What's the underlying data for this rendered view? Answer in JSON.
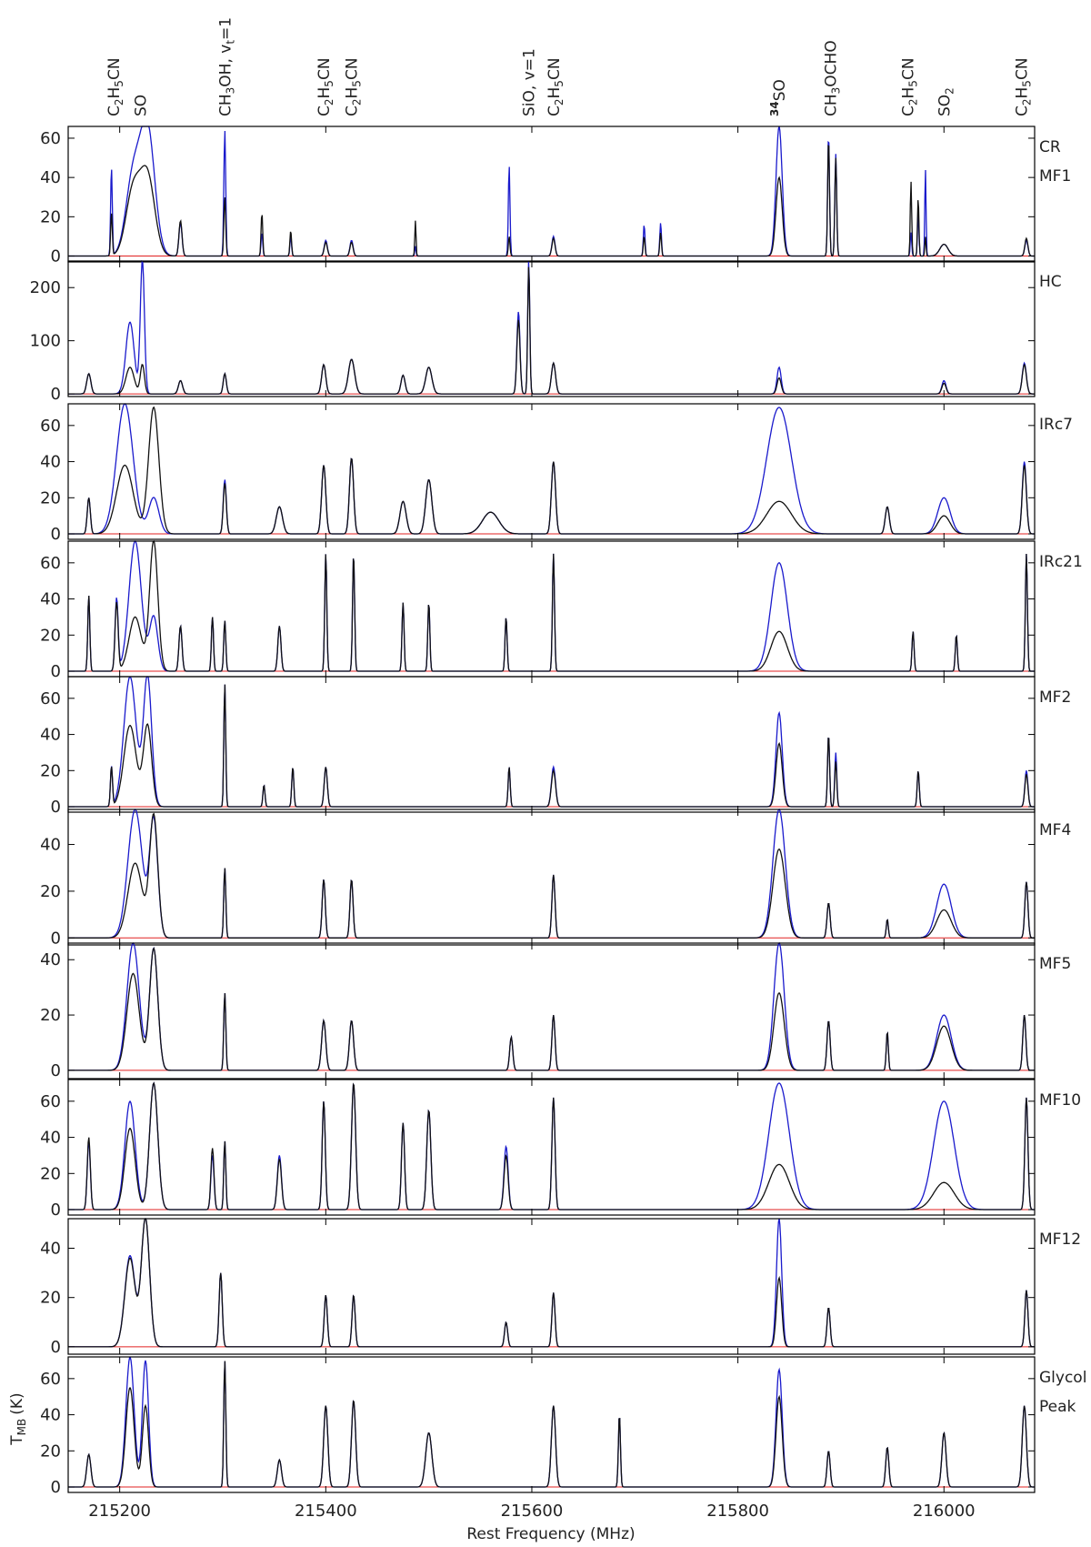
{
  "chart_data": {
    "type": "line",
    "xlabel": "Rest Frequency (MHz)",
    "ylabel_main": "T",
    "ylabel_sub": "MB",
    "ylabel_unit": "(K)",
    "x_range": [
      215150,
      216088
    ],
    "x_ticks": [
      215200,
      215400,
      215600,
      215800,
      216000
    ],
    "x_tick_labels": [
      "215200",
      "215400",
      "215600",
      "215800",
      "216000"
    ],
    "line_ids": [
      {
        "freq": 215194,
        "text": "C2H5CN"
      },
      {
        "freq": 215220,
        "text": "SO"
      },
      {
        "freq": 215302,
        "text": "CH3OH, vt=1"
      },
      {
        "freq": 215398,
        "text": "C2H5CN"
      },
      {
        "freq": 215425,
        "text": "C2H5CN"
      },
      {
        "freq": 215597,
        "text": "SiO, v=1"
      },
      {
        "freq": 215621,
        "text": "C2H5CN"
      },
      {
        "freq": 215840,
        "text": "34SO"
      },
      {
        "freq": 215890,
        "text": "CH3OCHO"
      },
      {
        "freq": 215965,
        "text": "C2H5CN"
      },
      {
        "freq": 216000,
        "text": "SO2"
      },
      {
        "freq": 216075,
        "text": "C2H5CN"
      }
    ],
    "panels": [
      {
        "labels": [
          "CR",
          "MF1"
        ],
        "ylim": [
          -3,
          66
        ],
        "yticks": [
          0,
          20,
          40,
          60
        ],
        "peaks": [
          {
            "x": 215192,
            "b": 45,
            "k": 22,
            "w": 0.8
          },
          {
            "x": 215213,
            "b": 40,
            "k": 33,
            "w": 7
          },
          {
            "x": 215227,
            "b": 64,
            "k": 40,
            "w": 7
          },
          {
            "x": 215259,
            "b": 17,
            "k": 18,
            "w": 1.5
          },
          {
            "x": 215302,
            "b": 64,
            "k": 30,
            "w": 0.9
          },
          {
            "x": 215338,
            "b": 12,
            "k": 22,
            "w": 0.8
          },
          {
            "x": 215366,
            "b": 10,
            "k": 13,
            "w": 0.8
          },
          {
            "x": 215400,
            "b": 8,
            "k": 7,
            "w": 1.5
          },
          {
            "x": 215425,
            "b": 8,
            "k": 7,
            "w": 1.5
          },
          {
            "x": 215487,
            "b": 5,
            "k": 18,
            "w": 0.6
          },
          {
            "x": 215578,
            "b": 46,
            "k": 10,
            "w": 0.8
          },
          {
            "x": 215621,
            "b": 10,
            "k": 9,
            "w": 1.5
          },
          {
            "x": 215709,
            "b": 16,
            "k": 10,
            "w": 0.8
          },
          {
            "x": 215725,
            "b": 17,
            "k": 12,
            "w": 0.8
          },
          {
            "x": 215840,
            "b": 66,
            "k": 40,
            "w": 3
          },
          {
            "x": 215888,
            "b": 62,
            "k": 60,
            "w": 0.9
          },
          {
            "x": 215895,
            "b": 52,
            "k": 50,
            "w": 0.9
          },
          {
            "x": 215968,
            "b": 12,
            "k": 38,
            "w": 0.7
          },
          {
            "x": 215975,
            "b": 22,
            "k": 30,
            "w": 0.7
          },
          {
            "x": 215982,
            "b": 45,
            "k": 10,
            "w": 0.6
          },
          {
            "x": 216000,
            "b": 6,
            "k": 6,
            "w": 4
          },
          {
            "x": 216080,
            "b": 8,
            "k": 9,
            "w": 1.5
          }
        ]
      },
      {
        "labels": [
          "HC"
        ],
        "ylim": [
          -5,
          250
        ],
        "yticks": [
          0,
          100,
          200
        ],
        "peaks": [
          {
            "x": 215170,
            "b": 38,
            "k": 38,
            "w": 2
          },
          {
            "x": 215210,
            "b": 135,
            "k": 50,
            "w": 4
          },
          {
            "x": 215222,
            "b": 250,
            "k": 55,
            "w": 2
          },
          {
            "x": 215259,
            "b": 25,
            "k": 25,
            "w": 2
          },
          {
            "x": 215302,
            "b": 38,
            "k": 38,
            "w": 1.5
          },
          {
            "x": 215398,
            "b": 55,
            "k": 55,
            "w": 2
          },
          {
            "x": 215425,
            "b": 65,
            "k": 65,
            "w": 3
          },
          {
            "x": 215475,
            "b": 35,
            "k": 35,
            "w": 2
          },
          {
            "x": 215500,
            "b": 50,
            "k": 50,
            "w": 3
          },
          {
            "x": 215587,
            "b": 155,
            "k": 140,
            "w": 1.5
          },
          {
            "x": 215597,
            "b": 250,
            "k": 240,
            "w": 1
          },
          {
            "x": 215621,
            "b": 58,
            "k": 58,
            "w": 2
          },
          {
            "x": 215840,
            "b": 50,
            "k": 30,
            "w": 2
          },
          {
            "x": 216000,
            "b": 25,
            "k": 20,
            "w": 2
          },
          {
            "x": 216078,
            "b": 58,
            "k": 55,
            "w": 2
          }
        ]
      },
      {
        "labels": [
          "IRc7"
        ],
        "ylim": [
          -3,
          72
        ],
        "yticks": [
          0,
          20,
          40,
          60
        ],
        "peaks": [
          {
            "x": 215170,
            "b": 20,
            "k": 20,
            "w": 1.5
          },
          {
            "x": 215205,
            "b": 72,
            "k": 38,
            "w": 8
          },
          {
            "x": 215233,
            "b": 20,
            "k": 70,
            "w": 5
          },
          {
            "x": 215302,
            "b": 30,
            "k": 28,
            "w": 1.5
          },
          {
            "x": 215355,
            "b": 15,
            "k": 15,
            "w": 3
          },
          {
            "x": 215398,
            "b": 38,
            "k": 38,
            "w": 2
          },
          {
            "x": 215425,
            "b": 42,
            "k": 42,
            "w": 2
          },
          {
            "x": 215475,
            "b": 18,
            "k": 18,
            "w": 3
          },
          {
            "x": 215500,
            "b": 30,
            "k": 30,
            "w": 3
          },
          {
            "x": 215560,
            "b": 12,
            "k": 12,
            "w": 8
          },
          {
            "x": 215621,
            "b": 40,
            "k": 40,
            "w": 2
          },
          {
            "x": 215840,
            "b": 70,
            "k": 18,
            "w": 12
          },
          {
            "x": 215945,
            "b": 15,
            "k": 15,
            "w": 2
          },
          {
            "x": 216000,
            "b": 20,
            "k": 10,
            "w": 6
          },
          {
            "x": 216078,
            "b": 40,
            "k": 38,
            "w": 2
          }
        ]
      },
      {
        "labels": [
          "IRc21"
        ],
        "ylim": [
          -3,
          72
        ],
        "yticks": [
          0,
          20,
          40,
          60
        ],
        "peaks": [
          {
            "x": 215170,
            "b": 42,
            "k": 42,
            "w": 1
          },
          {
            "x": 215197,
            "b": 40,
            "k": 38,
            "w": 1.5
          },
          {
            "x": 215215,
            "b": 72,
            "k": 30,
            "w": 6
          },
          {
            "x": 215233,
            "b": 30,
            "k": 72,
            "w": 4
          },
          {
            "x": 215259,
            "b": 25,
            "k": 25,
            "w": 1.5
          },
          {
            "x": 215290,
            "b": 30,
            "k": 30,
            "w": 1
          },
          {
            "x": 215302,
            "b": 28,
            "k": 28,
            "w": 1
          },
          {
            "x": 215355,
            "b": 25,
            "k": 25,
            "w": 1.5
          },
          {
            "x": 215400,
            "b": 65,
            "k": 65,
            "w": 1
          },
          {
            "x": 215427,
            "b": 65,
            "k": 65,
            "w": 1
          },
          {
            "x": 215475,
            "b": 38,
            "k": 38,
            "w": 1
          },
          {
            "x": 215500,
            "b": 38,
            "k": 38,
            "w": 1
          },
          {
            "x": 215575,
            "b": 30,
            "k": 30,
            "w": 1
          },
          {
            "x": 215621,
            "b": 65,
            "k": 65,
            "w": 1
          },
          {
            "x": 215840,
            "b": 60,
            "k": 22,
            "w": 8
          },
          {
            "x": 215970,
            "b": 22,
            "k": 22,
            "w": 1
          },
          {
            "x": 216012,
            "b": 20,
            "k": 20,
            "w": 1
          },
          {
            "x": 216080,
            "b": 65,
            "k": 65,
            "w": 1
          }
        ]
      },
      {
        "labels": [
          "MF2"
        ],
        "ylim": [
          -3,
          72
        ],
        "yticks": [
          0,
          20,
          40,
          60
        ],
        "peaks": [
          {
            "x": 215192,
            "b": 22,
            "k": 22,
            "w": 1
          },
          {
            "x": 215210,
            "b": 72,
            "k": 45,
            "w": 6
          },
          {
            "x": 215227,
            "b": 72,
            "k": 45,
            "w": 4
          },
          {
            "x": 215302,
            "b": 68,
            "k": 68,
            "w": 0.9
          },
          {
            "x": 215340,
            "b": 12,
            "k": 12,
            "w": 1
          },
          {
            "x": 215368,
            "b": 22,
            "k": 22,
            "w": 1
          },
          {
            "x": 215400,
            "b": 22,
            "k": 22,
            "w": 1.5
          },
          {
            "x": 215578,
            "b": 22,
            "k": 22,
            "w": 1
          },
          {
            "x": 215621,
            "b": 22,
            "k": 20,
            "w": 2
          },
          {
            "x": 215840,
            "b": 52,
            "k": 35,
            "w": 3
          },
          {
            "x": 215888,
            "b": 40,
            "k": 40,
            "w": 1
          },
          {
            "x": 215895,
            "b": 30,
            "k": 25,
            "w": 1
          },
          {
            "x": 215975,
            "b": 20,
            "k": 20,
            "w": 1
          },
          {
            "x": 216080,
            "b": 20,
            "k": 18,
            "w": 1.5
          }
        ]
      },
      {
        "labels": [
          "MF4"
        ],
        "ylim": [
          -3,
          55
        ],
        "yticks": [
          0,
          20,
          40
        ],
        "peaks": [
          {
            "x": 215215,
            "b": 55,
            "k": 32,
            "w": 7
          },
          {
            "x": 215233,
            "b": 50,
            "k": 52,
            "w": 4
          },
          {
            "x": 215302,
            "b": 30,
            "k": 30,
            "w": 1
          },
          {
            "x": 215398,
            "b": 25,
            "k": 25,
            "w": 1.5
          },
          {
            "x": 215425,
            "b": 25,
            "k": 25,
            "w": 1.5
          },
          {
            "x": 215621,
            "b": 27,
            "k": 27,
            "w": 1.5
          },
          {
            "x": 215840,
            "b": 55,
            "k": 38,
            "w": 6
          },
          {
            "x": 215888,
            "b": 15,
            "k": 15,
            "w": 1.5
          },
          {
            "x": 215945,
            "b": 8,
            "k": 8,
            "w": 1
          },
          {
            "x": 216000,
            "b": 23,
            "k": 12,
            "w": 7
          },
          {
            "x": 216080,
            "b": 24,
            "k": 24,
            "w": 1.5
          }
        ]
      },
      {
        "labels": [
          "MF5"
        ],
        "ylim": [
          -3,
          46
        ],
        "yticks": [
          0,
          20,
          40
        ],
        "peaks": [
          {
            "x": 215213,
            "b": 46,
            "k": 35,
            "w": 6
          },
          {
            "x": 215233,
            "b": 44,
            "k": 44,
            "w": 4
          },
          {
            "x": 215302,
            "b": 28,
            "k": 28,
            "w": 1
          },
          {
            "x": 215398,
            "b": 18,
            "k": 18,
            "w": 2
          },
          {
            "x": 215425,
            "b": 18,
            "k": 18,
            "w": 2
          },
          {
            "x": 215580,
            "b": 12,
            "k": 12,
            "w": 1.5
          },
          {
            "x": 215621,
            "b": 20,
            "k": 20,
            "w": 1.5
          },
          {
            "x": 215840,
            "b": 46,
            "k": 28,
            "w": 5
          },
          {
            "x": 215888,
            "b": 18,
            "k": 18,
            "w": 1.5
          },
          {
            "x": 215945,
            "b": 14,
            "k": 14,
            "w": 1
          },
          {
            "x": 216000,
            "b": 20,
            "k": 16,
            "w": 7
          },
          {
            "x": 216078,
            "b": 20,
            "k": 20,
            "w": 1.5
          }
        ]
      },
      {
        "labels": [
          "MF10"
        ],
        "ylim": [
          -3,
          72
        ],
        "yticks": [
          0,
          20,
          40,
          60
        ],
        "peaks": [
          {
            "x": 215170,
            "b": 38,
            "k": 40,
            "w": 1.5
          },
          {
            "x": 215210,
            "b": 60,
            "k": 45,
            "w": 5
          },
          {
            "x": 215233,
            "b": 70,
            "k": 70,
            "w": 4
          },
          {
            "x": 215290,
            "b": 30,
            "k": 34,
            "w": 1.5
          },
          {
            "x": 215302,
            "b": 38,
            "k": 38,
            "w": 1
          },
          {
            "x": 215355,
            "b": 30,
            "k": 28,
            "w": 2
          },
          {
            "x": 215398,
            "b": 60,
            "k": 60,
            "w": 1.5
          },
          {
            "x": 215427,
            "b": 70,
            "k": 70,
            "w": 2
          },
          {
            "x": 215475,
            "b": 48,
            "k": 48,
            "w": 1.5
          },
          {
            "x": 215500,
            "b": 55,
            "k": 55,
            "w": 2
          },
          {
            "x": 215575,
            "b": 35,
            "k": 30,
            "w": 2
          },
          {
            "x": 215621,
            "b": 62,
            "k": 62,
            "w": 1.5
          },
          {
            "x": 215840,
            "b": 70,
            "k": 25,
            "w": 10
          },
          {
            "x": 216000,
            "b": 60,
            "k": 15,
            "w": 10
          },
          {
            "x": 216080,
            "b": 62,
            "k": 62,
            "w": 1.5
          }
        ]
      },
      {
        "labels": [
          "MF12"
        ],
        "ylim": [
          -3,
          52
        ],
        "yticks": [
          0,
          20,
          40
        ],
        "peaks": [
          {
            "x": 215210,
            "b": 37,
            "k": 36,
            "w": 5
          },
          {
            "x": 215225,
            "b": 52,
            "k": 52,
            "w": 4
          },
          {
            "x": 215298,
            "b": 30,
            "k": 30,
            "w": 1.5
          },
          {
            "x": 215400,
            "b": 21,
            "k": 21,
            "w": 1.5
          },
          {
            "x": 215427,
            "b": 21,
            "k": 21,
            "w": 1.5
          },
          {
            "x": 215575,
            "b": 10,
            "k": 10,
            "w": 1.5
          },
          {
            "x": 215621,
            "b": 22,
            "k": 22,
            "w": 1.5
          },
          {
            "x": 215840,
            "b": 52,
            "k": 28,
            "w": 2.5
          },
          {
            "x": 215888,
            "b": 16,
            "k": 16,
            "w": 1.5
          },
          {
            "x": 216080,
            "b": 23,
            "k": 23,
            "w": 1.5
          }
        ]
      },
      {
        "labels": [
          "Glycol",
          "Peak"
        ],
        "ylim": [
          -3,
          72
        ],
        "yticks": [
          0,
          20,
          40,
          60
        ],
        "peaks": [
          {
            "x": 215170,
            "b": 18,
            "k": 18,
            "w": 2
          },
          {
            "x": 215210,
            "b": 72,
            "k": 55,
            "w": 4
          },
          {
            "x": 215225,
            "b": 70,
            "k": 45,
            "w": 3
          },
          {
            "x": 215302,
            "b": 70,
            "k": 70,
            "w": 1
          },
          {
            "x": 215355,
            "b": 15,
            "k": 15,
            "w": 2
          },
          {
            "x": 215400,
            "b": 45,
            "k": 45,
            "w": 2
          },
          {
            "x": 215427,
            "b": 48,
            "k": 48,
            "w": 2
          },
          {
            "x": 215500,
            "b": 30,
            "k": 30,
            "w": 3
          },
          {
            "x": 215621,
            "b": 45,
            "k": 45,
            "w": 2
          },
          {
            "x": 215685,
            "b": 40,
            "k": 40,
            "w": 1
          },
          {
            "x": 215840,
            "b": 65,
            "k": 50,
            "w": 3
          },
          {
            "x": 215888,
            "b": 20,
            "k": 20,
            "w": 1.5
          },
          {
            "x": 215945,
            "b": 22,
            "k": 22,
            "w": 1.5
          },
          {
            "x": 216000,
            "b": 30,
            "k": 30,
            "w": 2
          },
          {
            "x": 216078,
            "b": 45,
            "k": 45,
            "w": 2
          }
        ]
      }
    ]
  }
}
